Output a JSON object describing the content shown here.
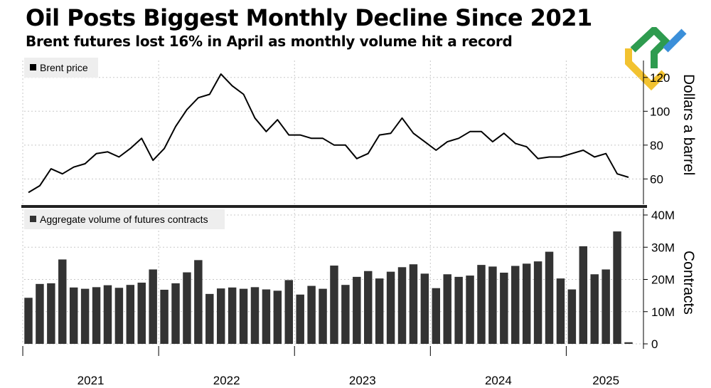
{
  "header": {
    "title": "Oil Posts Biggest Monthly Decline Since 2021",
    "subtitle": "Brent futures lost 16% in April as monthly volume hit a record"
  },
  "colors": {
    "line": "#000000",
    "bars": "#333333",
    "grid": "#c8c8c8",
    "divider": "#222222",
    "legend_bg": "#eeeeee",
    "logo_green": "#2e9b4f",
    "logo_yellow": "#f2c230",
    "logo_blue": "#3b8fd9"
  },
  "chart_data": [
    {
      "type": "line",
      "legend": "Brent price",
      "ylabel": "Dollars a barrel",
      "yticks": [
        60,
        80,
        100,
        120
      ],
      "ylim": [
        45,
        130
      ],
      "xlim": [
        0,
        53
      ],
      "x_tick_labels": [
        "2021",
        "2022",
        "2023",
        "2024",
        "2025"
      ],
      "grid": true,
      "legend_position": "top-left",
      "series": [
        {
          "values": [
            52,
            56,
            66,
            63,
            67,
            69,
            75,
            76,
            73,
            78,
            84,
            71,
            78,
            91,
            101,
            108,
            110,
            122,
            115,
            110,
            96,
            88,
            95,
            86,
            86,
            84,
            84,
            80,
            80,
            72,
            75,
            86,
            87,
            96,
            87,
            82,
            77,
            82,
            84,
            88,
            88,
            82,
            87,
            81,
            79,
            72,
            73,
            73,
            75,
            77,
            73,
            75,
            63,
            61
          ]
        }
      ]
    },
    {
      "type": "bar",
      "legend": "Aggregate volume of futures contracts",
      "ylabel": "Contracts",
      "yticks": [
        "0",
        "10M",
        "20M",
        "30M",
        "40M"
      ],
      "ylim": [
        0,
        40
      ],
      "unit": "million contracts",
      "x_tick_labels": [
        "2021",
        "2022",
        "2023",
        "2024",
        "2025"
      ],
      "grid": true,
      "legend_position": "top-left",
      "series": [
        {
          "values": [
            14.3,
            18.6,
            18.8,
            26.2,
            17.5,
            17.1,
            17.6,
            18.2,
            17.4,
            18.3,
            19.0,
            23.1,
            16.8,
            18.8,
            22.2,
            26.0,
            15.5,
            17.2,
            17.5,
            17.1,
            17.6,
            16.9,
            16.5,
            19.8,
            15.3,
            18.0,
            17.1,
            24.3,
            18.3,
            20.8,
            22.6,
            20.3,
            22.4,
            23.8,
            24.7,
            21.8,
            17.3,
            21.6,
            20.8,
            21.2,
            24.5,
            24.0,
            22.1,
            24.2,
            24.9,
            25.6,
            28.6,
            20.3,
            16.9,
            30.3,
            21.6,
            23.1,
            34.9,
            0.5
          ]
        }
      ]
    }
  ]
}
